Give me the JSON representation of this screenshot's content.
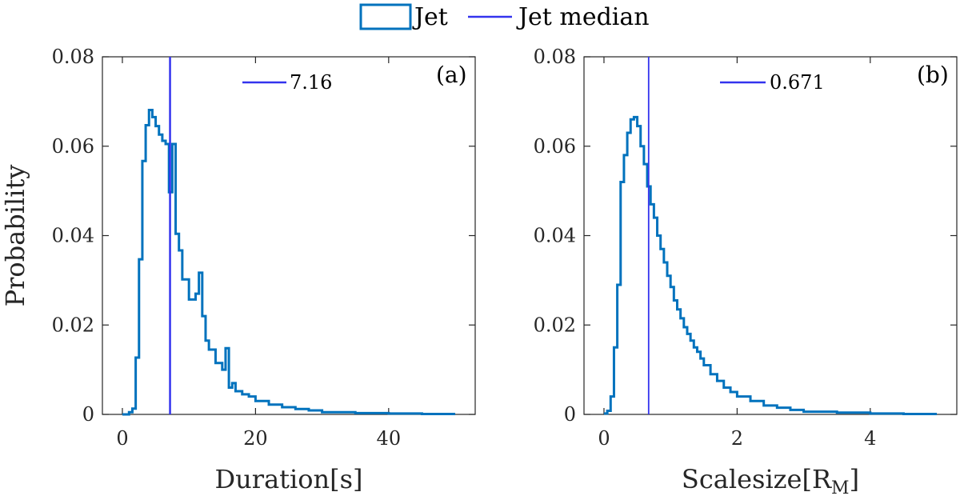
{
  "colors": {
    "jet": "#0072BD",
    "median": "#3333EE",
    "axis": "#262626"
  },
  "legend": {
    "entries": [
      {
        "label": "Jet",
        "style": "patch",
        "color": "#0072BD"
      },
      {
        "label": "Jet median",
        "style": "line",
        "color": "#3333EE"
      }
    ]
  },
  "chart_data": [
    {
      "type": "histogram-stairs",
      "panel_label": "(a)",
      "xlabel": "Duration[s]",
      "xlabel_main": "Duration[s]",
      "xlabel_sub": "",
      "xlabel_tail": "",
      "ylabel": "Probability",
      "xlim": [
        -3,
        53
      ],
      "ylim": [
        0,
        0.08
      ],
      "xticks": [
        0,
        20,
        40
      ],
      "yticks": [
        0,
        0.02,
        0.04,
        0.06,
        0.08
      ],
      "ytick_labels": [
        "0",
        "0.02",
        "0.04",
        "0.06",
        "0.08"
      ],
      "median": 7.16,
      "median_label": "7.16",
      "series": [
        {
          "name": "Jet",
          "edges": [
            0,
            0.5,
            1,
            1.5,
            2,
            2.5,
            3,
            3.5,
            4,
            4.5,
            5,
            5.5,
            6,
            6.5,
            7,
            7.5,
            8,
            8.5,
            9,
            10,
            11,
            11.5,
            12,
            12.5,
            13,
            14,
            15,
            15.5,
            16,
            16.5,
            17,
            18,
            19,
            20,
            22,
            24,
            26,
            28,
            30,
            35,
            40,
            45,
            50
          ],
          "values": [
            0.0,
            0.0,
            0.0005,
            0.0013,
            0.0127,
            0.0347,
            0.0567,
            0.0647,
            0.0681,
            0.0665,
            0.0645,
            0.0626,
            0.0612,
            0.0605,
            0.0497,
            0.0605,
            0.0404,
            0.0367,
            0.0302,
            0.0257,
            0.027,
            0.0317,
            0.022,
            0.0165,
            0.0145,
            0.0115,
            0.01,
            0.0148,
            0.006,
            0.007,
            0.0052,
            0.0045,
            0.004,
            0.003,
            0.0022,
            0.0016,
            0.0012,
            0.0009,
            0.0005,
            0.0003,
            0.0002,
            0.0001
          ]
        }
      ]
    },
    {
      "type": "histogram-stairs",
      "panel_label": "(b)",
      "xlabel": "Scalesize[RM]",
      "xlabel_main": "Scalesize[R",
      "xlabel_sub": "M",
      "xlabel_tail": "]",
      "ylabel": "",
      "xlim": [
        -0.3,
        5.3
      ],
      "ylim": [
        0,
        0.08
      ],
      "xticks": [
        0,
        2,
        4
      ],
      "yticks": [
        0,
        0.02,
        0.04,
        0.06,
        0.08
      ],
      "ytick_labels": [
        "0",
        "0.02",
        "0.04",
        "0.06",
        "0.08"
      ],
      "median": 0.671,
      "median_label": "0.671",
      "series": [
        {
          "name": "Jet",
          "edges": [
            0,
            0.05,
            0.1,
            0.15,
            0.2,
            0.25,
            0.3,
            0.35,
            0.4,
            0.45,
            0.5,
            0.55,
            0.6,
            0.65,
            0.7,
            0.75,
            0.8,
            0.85,
            0.9,
            0.95,
            1.0,
            1.05,
            1.1,
            1.15,
            1.2,
            1.25,
            1.3,
            1.35,
            1.4,
            1.45,
            1.5,
            1.6,
            1.7,
            1.8,
            1.9,
            2.0,
            2.2,
            2.4,
            2.6,
            2.8,
            3.0,
            3.5,
            4.0,
            4.5,
            5.0
          ],
          "values": [
            0.0002,
            0.0008,
            0.004,
            0.015,
            0.029,
            0.052,
            0.058,
            0.063,
            0.066,
            0.0665,
            0.0645,
            0.06,
            0.056,
            0.051,
            0.047,
            0.044,
            0.04,
            0.037,
            0.034,
            0.031,
            0.0285,
            0.0255,
            0.0235,
            0.0215,
            0.0195,
            0.018,
            0.0165,
            0.015,
            0.014,
            0.0125,
            0.011,
            0.009,
            0.0075,
            0.006,
            0.005,
            0.004,
            0.003,
            0.002,
            0.0015,
            0.001,
            0.0006,
            0.0004,
            0.0002,
            0.0001
          ]
        }
      ]
    }
  ]
}
